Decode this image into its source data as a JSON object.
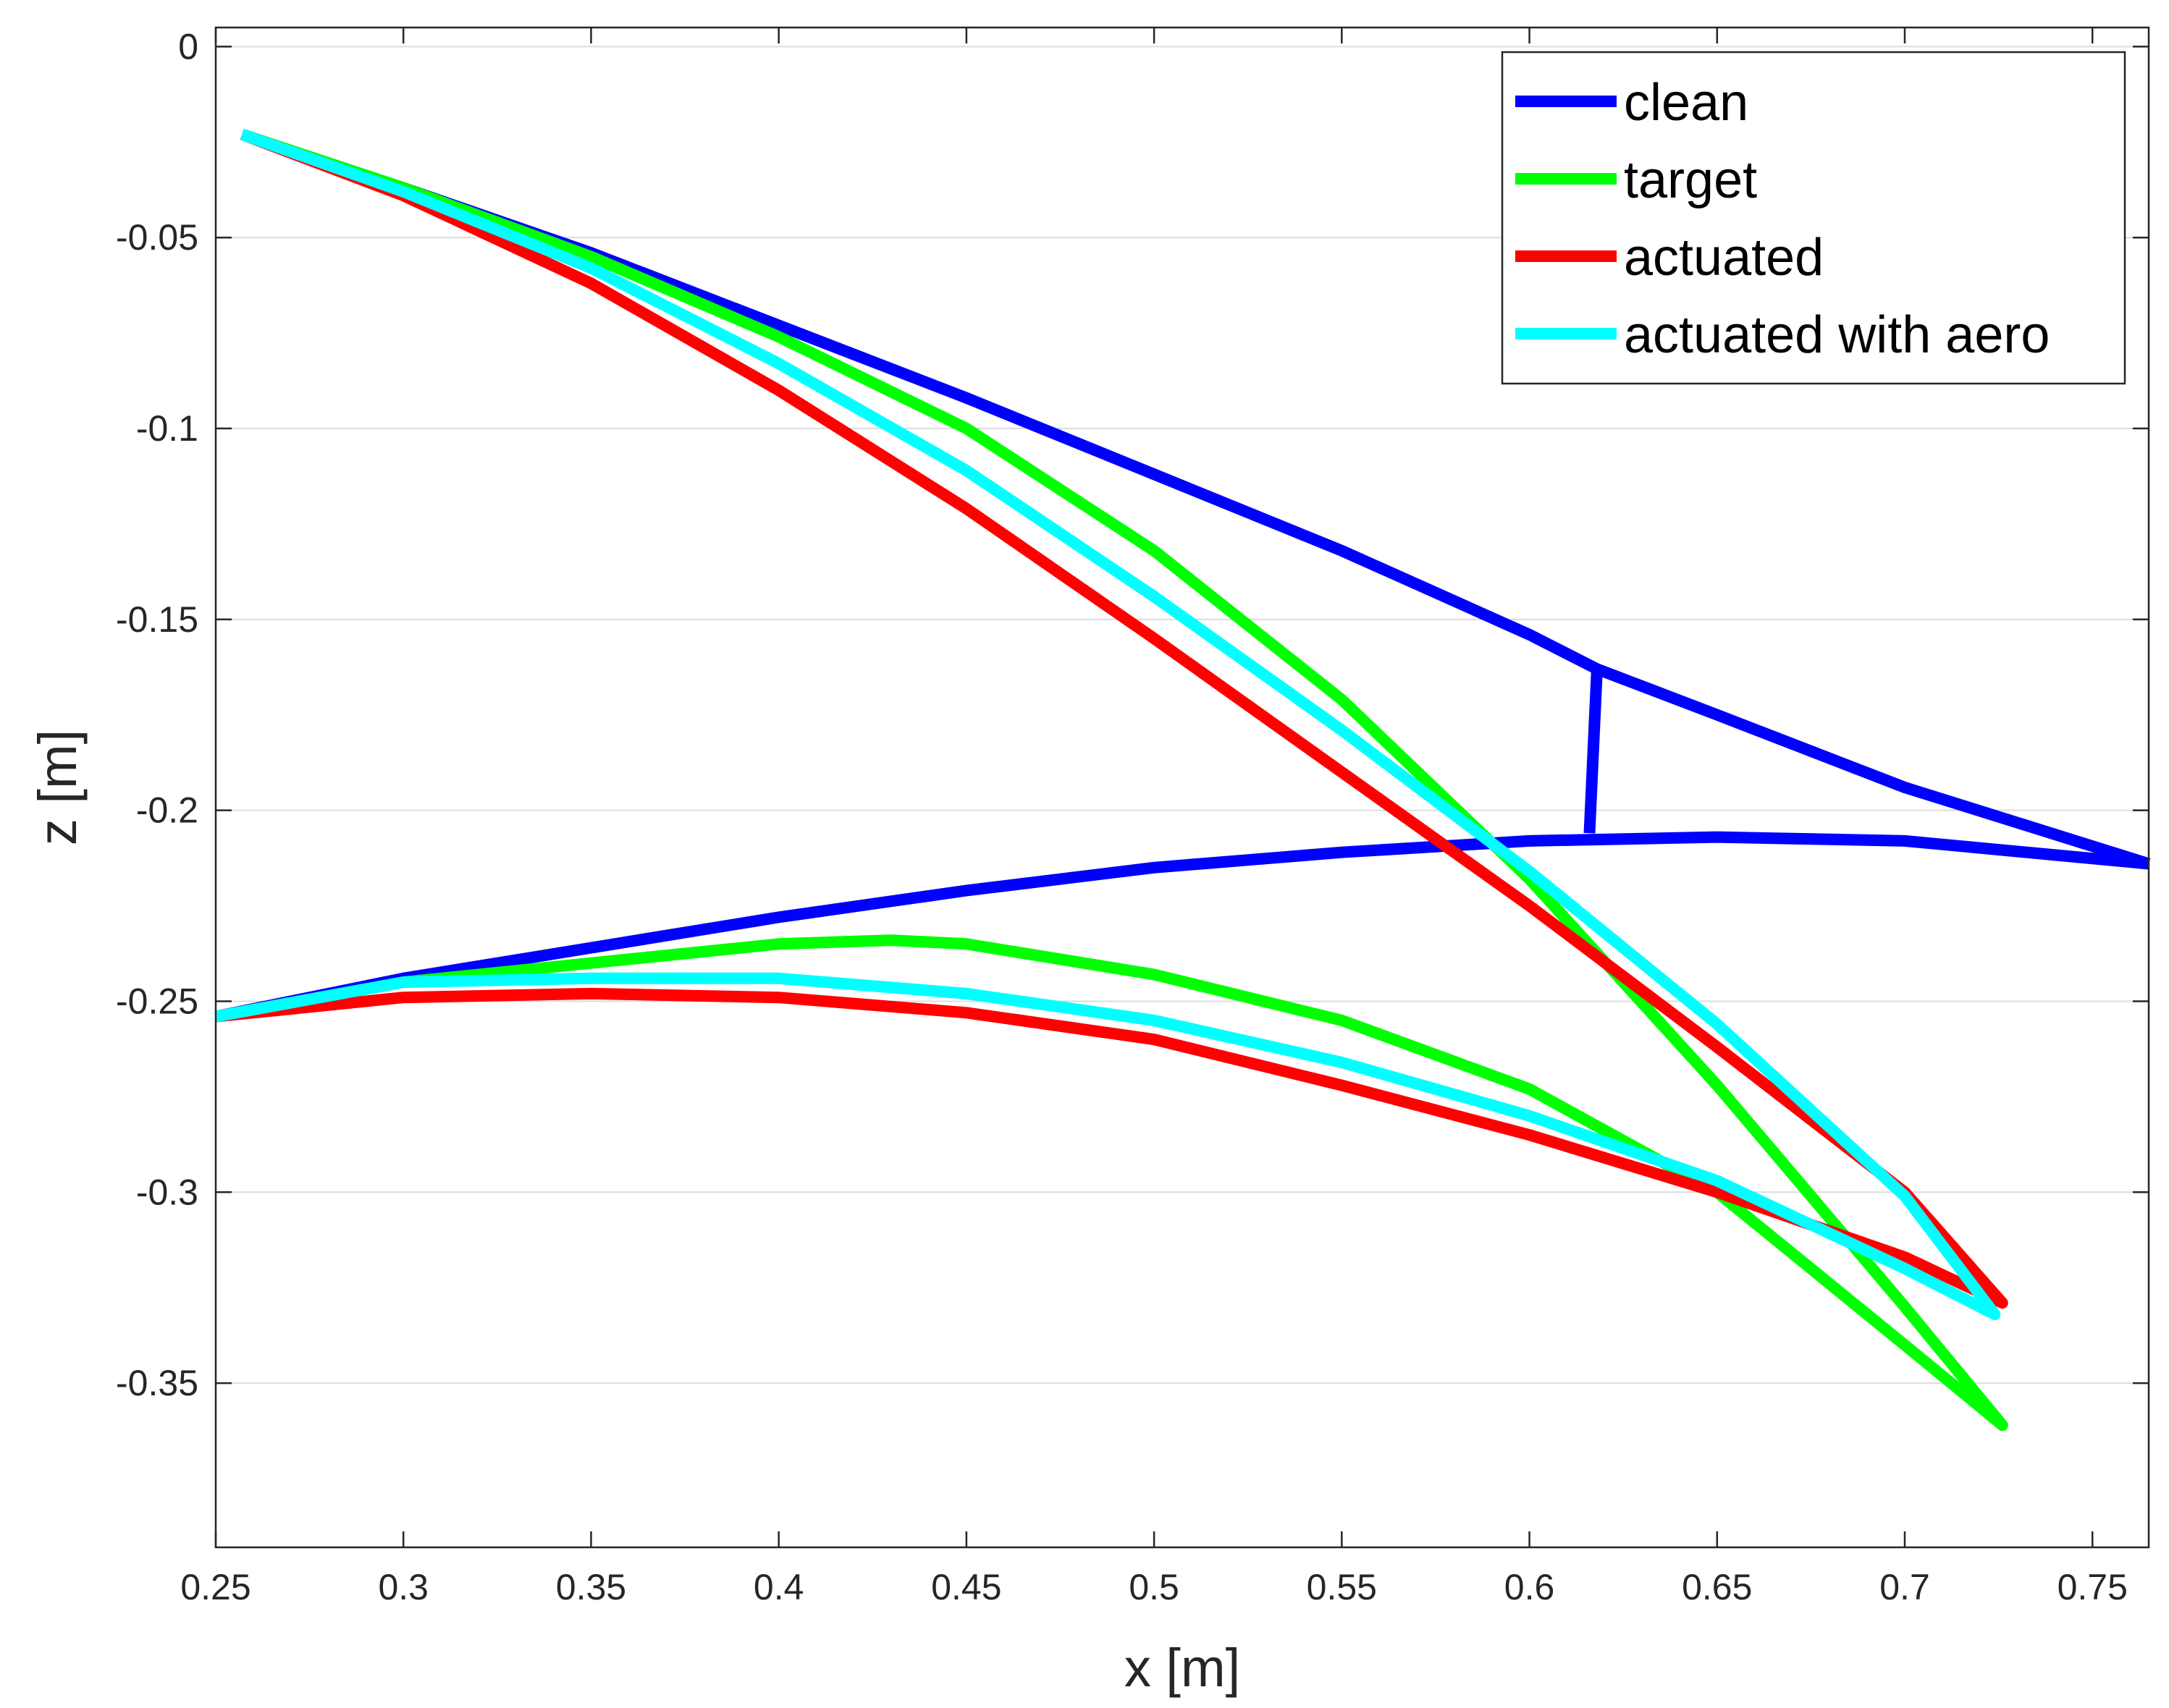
{
  "chart_data": {
    "type": "line",
    "title": "",
    "xlabel": "x [m]",
    "ylabel": "z [m]",
    "xlim": [
      0.25,
      0.765
    ],
    "ylim": [
      -0.393,
      0.005
    ],
    "xticks": [
      0.25,
      0.3,
      0.35,
      0.4,
      0.45,
      0.5,
      0.55,
      0.6,
      0.65,
      0.7,
      0.75
    ],
    "xtick_labels": [
      "0.25",
      "0.3",
      "0.35",
      "0.4",
      "0.45",
      "0.5",
      "0.55",
      "0.6",
      "0.65",
      "0.7",
      "0.75"
    ],
    "yticks": [
      0,
      -0.05,
      -0.1,
      -0.15,
      -0.2,
      -0.25,
      -0.3,
      -0.35
    ],
    "ytick_labels": [
      "0",
      "-0.05",
      "-0.1",
      "-0.15",
      "-0.2",
      "-0.25",
      "-0.3",
      "-0.35"
    ],
    "ygrid": true,
    "legend_position": "top-right",
    "series": [
      {
        "name": "clean",
        "color": "#0000ff",
        "segments": [
          [
            [
              0.257,
              -0.023
            ],
            [
              0.3,
              -0.037
            ],
            [
              0.35,
              -0.054
            ],
            [
              0.4,
              -0.073
            ],
            [
              0.45,
              -0.092
            ],
            [
              0.5,
              -0.112
            ],
            [
              0.55,
              -0.132
            ],
            [
              0.6,
              -0.154
            ],
            [
              0.618,
              -0.163
            ],
            [
              0.65,
              -0.175
            ],
            [
              0.7,
              -0.194
            ],
            [
              0.765,
              -0.214
            ]
          ],
          [
            [
              0.618,
              -0.163
            ],
            [
              0.616,
              -0.206
            ]
          ],
          [
            [
              0.25,
              -0.254
            ],
            [
              0.3,
              -0.244
            ],
            [
              0.35,
              -0.236
            ],
            [
              0.4,
              -0.228
            ],
            [
              0.45,
              -0.221
            ],
            [
              0.5,
              -0.215
            ],
            [
              0.55,
              -0.211
            ],
            [
              0.6,
              -0.208
            ],
            [
              0.65,
              -0.207
            ],
            [
              0.7,
              -0.208
            ],
            [
              0.765,
              -0.214
            ]
          ]
        ]
      },
      {
        "name": "target",
        "color": "#00ff00",
        "segments": [
          [
            [
              0.257,
              -0.023
            ],
            [
              0.3,
              -0.037
            ],
            [
              0.35,
              -0.055
            ],
            [
              0.4,
              -0.076
            ],
            [
              0.45,
              -0.1
            ],
            [
              0.5,
              -0.132
            ],
            [
              0.55,
              -0.171
            ],
            [
              0.6,
              -0.218
            ],
            [
              0.65,
              -0.272
            ],
            [
              0.7,
              -0.33
            ],
            [
              0.726,
              -0.361
            ],
            [
              0.7,
              -0.34
            ],
            [
              0.65,
              -0.3
            ],
            [
              0.6,
              -0.273
            ],
            [
              0.55,
              -0.255
            ],
            [
              0.5,
              -0.243
            ],
            [
              0.45,
              -0.235
            ],
            [
              0.43,
              -0.234
            ],
            [
              0.4,
              -0.235
            ],
            [
              0.35,
              -0.24
            ],
            [
              0.3,
              -0.245
            ],
            [
              0.25,
              -0.254
            ]
          ]
        ]
      },
      {
        "name": "actuated",
        "color": "#ff0000",
        "segments": [
          [
            [
              0.257,
              -0.023
            ],
            [
              0.3,
              -0.039
            ],
            [
              0.35,
              -0.062
            ],
            [
              0.4,
              -0.09
            ],
            [
              0.45,
              -0.121
            ],
            [
              0.5,
              -0.155
            ],
            [
              0.55,
              -0.19
            ],
            [
              0.6,
              -0.225
            ],
            [
              0.65,
              -0.262
            ],
            [
              0.7,
              -0.3
            ],
            [
              0.726,
              -0.329
            ],
            [
              0.7,
              -0.317
            ],
            [
              0.65,
              -0.3
            ],
            [
              0.6,
              -0.285
            ],
            [
              0.55,
              -0.272
            ],
            [
              0.5,
              -0.26
            ],
            [
              0.45,
              -0.253
            ],
            [
              0.4,
              -0.249
            ],
            [
              0.35,
              -0.248
            ],
            [
              0.3,
              -0.249
            ],
            [
              0.25,
              -0.254
            ]
          ]
        ]
      },
      {
        "name": "actuated with aero",
        "color": "#00ffff",
        "segments": [
          [
            [
              0.257,
              -0.023
            ],
            [
              0.3,
              -0.038
            ],
            [
              0.35,
              -0.058
            ],
            [
              0.4,
              -0.083
            ],
            [
              0.45,
              -0.111
            ],
            [
              0.5,
              -0.144
            ],
            [
              0.55,
              -0.179
            ],
            [
              0.6,
              -0.216
            ],
            [
              0.65,
              -0.256
            ],
            [
              0.7,
              -0.301
            ],
            [
              0.724,
              -0.332
            ],
            [
              0.7,
              -0.32
            ],
            [
              0.65,
              -0.297
            ],
            [
              0.6,
              -0.28
            ],
            [
              0.55,
              -0.266
            ],
            [
              0.5,
              -0.255
            ],
            [
              0.45,
              -0.248
            ],
            [
              0.4,
              -0.244
            ],
            [
              0.35,
              -0.244
            ],
            [
              0.3,
              -0.245
            ],
            [
              0.25,
              -0.254
            ]
          ]
        ]
      }
    ]
  }
}
